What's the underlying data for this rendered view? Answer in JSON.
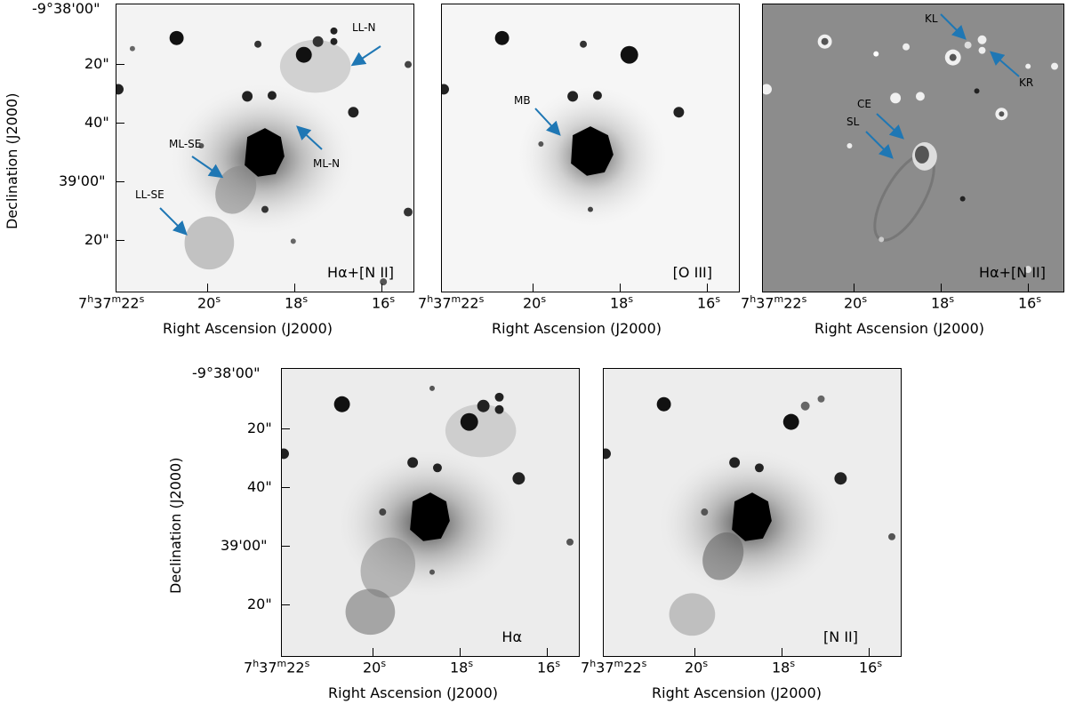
{
  "axes": {
    "ra_label": "Right Ascension (J2000)",
    "dec_label": "Declination (J2000)",
    "ra_first": "7",
    "ra_first_h": "h",
    "ra_first_m1": "37",
    "ra_first_m": "m",
    "ra_first_s1": "22",
    "ra_first_s": "s",
    "ra_ticks": [
      "20",
      "18",
      "16"
    ],
    "ra_sec_sup": "s",
    "dec_ticks": [
      "-9°38'00\"",
      "20\"",
      "40\"",
      "39'00\"",
      "20\""
    ]
  },
  "panels": [
    {
      "label": "Hα+[N II]"
    },
    {
      "label": "[O III]"
    },
    {
      "label": "Hα+[N II]"
    },
    {
      "label": "Hα"
    },
    {
      "label": "[N II]"
    }
  ],
  "annotations": {
    "ll_n": "LL-N",
    "ml_se": "ML-SE",
    "ml_n": "ML-N",
    "ll_se": "LL-SE",
    "mb": "MB",
    "kl": "KL",
    "kr": "KR",
    "ce": "CE",
    "sl": "SL"
  },
  "colors": {
    "arrow": "#1f77b4",
    "panel_bg_neg": "#f3f3f3",
    "panel_bg_diff": "#8c8c8c"
  }
}
